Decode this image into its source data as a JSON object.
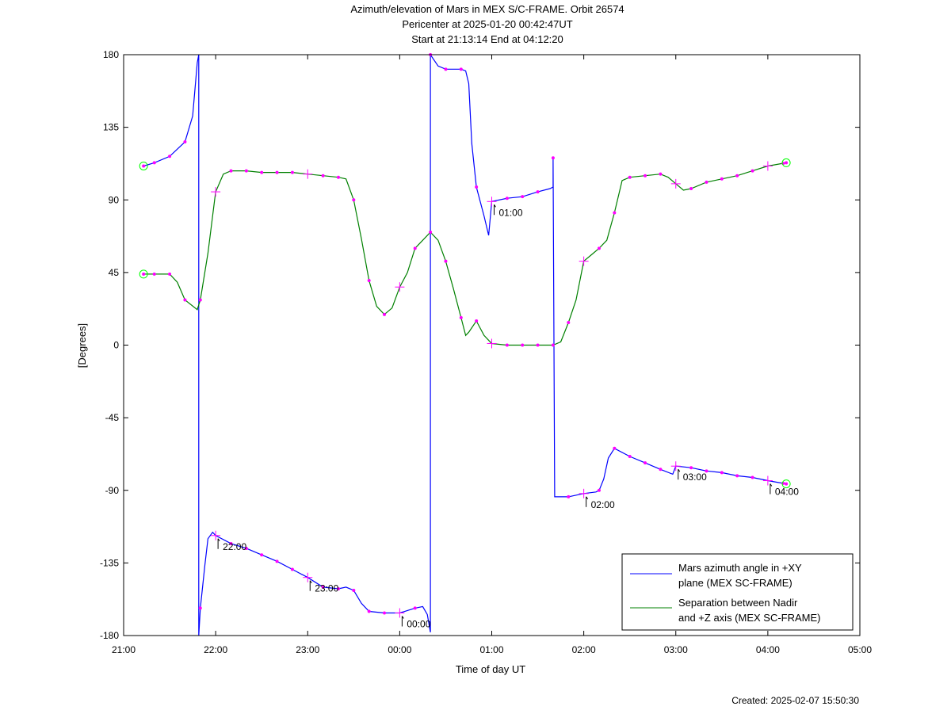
{
  "title": {
    "line1": "Azimuth/elevation of Mars in MEX S/C-FRAME.  Orbit 26574",
    "line2": "Pericenter at 2025-01-20 00:42:47UT",
    "line3": "Start at 21:13:14 End at 04:12:20"
  },
  "created": "Created: 2025-02-07 15:50:30",
  "colors": {
    "azimuth": "#0000ff",
    "separation": "#008000",
    "markers": "#ff00ff",
    "endpoint_circle": "#00ff00"
  },
  "chart_data": {
    "type": "line",
    "xlabel": "Time of day UT",
    "ylabel": "[Degrees]",
    "ylim": [
      -180,
      180
    ],
    "xlim_hours": [
      21,
      29
    ],
    "x_ticks": [
      "21:00",
      "22:00",
      "23:00",
      "00:00",
      "01:00",
      "02:00",
      "03:00",
      "04:00",
      "05:00"
    ],
    "y_ticks": [
      "180",
      "135",
      "90",
      "45",
      "0",
      "-45",
      "-90",
      "-135",
      "-180"
    ],
    "hour_annotations": [
      {
        "label": "22:00",
        "series": "azimuth"
      },
      {
        "label": "23:00",
        "series": "azimuth"
      },
      {
        "label": "00:00",
        "series": "azimuth"
      },
      {
        "label": "01:00",
        "series": "azimuth"
      },
      {
        "label": "02:00",
        "series": "azimuth"
      },
      {
        "label": "03:00",
        "series": "azimuth"
      },
      {
        "label": "04:00",
        "series": "azimuth"
      }
    ],
    "legend_position": "bottom-right",
    "series": [
      {
        "name": "Mars azimuth angle in +XY plane (MEX SC-FRAME)",
        "legend_lines": [
          "Mars azimuth angle in +XY",
          "plane (MEX SC-FRAME)"
        ],
        "points": [
          [
            "21:13",
            111
          ],
          [
            "21:20",
            113
          ],
          [
            "21:30",
            117
          ],
          [
            "21:40",
            126
          ],
          [
            "21:45",
            142
          ],
          [
            "21:48",
            175
          ],
          [
            "21:49",
            180
          ],
          [
            "21:49",
            -180
          ],
          [
            "21:50",
            -163
          ],
          [
            "21:53",
            -136
          ],
          [
            "21:55",
            -120
          ],
          [
            "21:58",
            -116
          ],
          [
            "22:00",
            -118
          ],
          [
            "22:10",
            -123
          ],
          [
            "22:20",
            -126
          ],
          [
            "22:30",
            -130
          ],
          [
            "22:40",
            -134
          ],
          [
            "22:50",
            -139
          ],
          [
            "23:00",
            -144
          ],
          [
            "23:10",
            -150
          ],
          [
            "23:20",
            -151
          ],
          [
            "23:25",
            -150
          ],
          [
            "23:30",
            -152
          ],
          [
            "23:35",
            -160
          ],
          [
            "23:40",
            -165
          ],
          [
            "23:50",
            -166
          ],
          [
            "24:00",
            -166
          ],
          [
            "24:10",
            -163
          ],
          [
            "24:15",
            -162
          ],
          [
            "24:18",
            -167
          ],
          [
            "24:20",
            -178
          ],
          [
            "24:20",
            180
          ],
          [
            "24:25",
            173
          ],
          [
            "24:30",
            171
          ],
          [
            "24:40",
            171
          ],
          [
            "24:43",
            170
          ],
          [
            "24:45",
            162
          ],
          [
            "24:47",
            125
          ],
          [
            "24:50",
            98
          ],
          [
            "24:55",
            80
          ],
          [
            "24:58",
            68
          ],
          [
            "25:00",
            89
          ],
          [
            "25:10",
            91
          ],
          [
            "25:20",
            92
          ],
          [
            "25:30",
            95
          ],
          [
            "25:38",
            97
          ],
          [
            "25:40",
            98
          ],
          [
            "25:40",
            116
          ],
          [
            "25:41",
            -94
          ],
          [
            "25:50",
            -94
          ],
          [
            "26:00",
            -92
          ],
          [
            "26:08",
            -91
          ],
          [
            "26:10",
            -90
          ],
          [
            "26:13",
            -83
          ],
          [
            "26:16",
            -70
          ],
          [
            "26:20",
            -64
          ],
          [
            "26:30",
            -69
          ],
          [
            "26:40",
            -73
          ],
          [
            "26:50",
            -77
          ],
          [
            "26:58",
            -80
          ],
          [
            "27:00",
            -75
          ],
          [
            "27:10",
            -76
          ],
          [
            "27:20",
            -78
          ],
          [
            "27:30",
            -79
          ],
          [
            "27:40",
            -81
          ],
          [
            "27:50",
            -82
          ],
          [
            "28:00",
            -84
          ],
          [
            "28:12",
            -86
          ]
        ]
      },
      {
        "name": "Separation between Nadir and +Z axis (MEX SC-FRAME)",
        "legend_lines": [
          "Separation between Nadir",
          "and +Z axis (MEX SC-FRAME)"
        ],
        "points": [
          [
            "21:13",
            44
          ],
          [
            "21:20",
            44
          ],
          [
            "21:30",
            44
          ],
          [
            "21:35",
            39
          ],
          [
            "21:40",
            28
          ],
          [
            "21:48",
            22
          ],
          [
            "21:50",
            28
          ],
          [
            "21:55",
            57
          ],
          [
            "22:00",
            95
          ],
          [
            "22:05",
            106
          ],
          [
            "22:10",
            108
          ],
          [
            "22:20",
            108
          ],
          [
            "22:30",
            107
          ],
          [
            "22:40",
            107
          ],
          [
            "22:50",
            107
          ],
          [
            "23:00",
            106
          ],
          [
            "23:10",
            105
          ],
          [
            "23:20",
            104
          ],
          [
            "23:25",
            103
          ],
          [
            "23:30",
            90
          ],
          [
            "23:35",
            66
          ],
          [
            "23:40",
            40
          ],
          [
            "23:45",
            24
          ],
          [
            "23:50",
            19
          ],
          [
            "23:55",
            23
          ],
          [
            "24:00",
            36
          ],
          [
            "24:05",
            45
          ],
          [
            "24:10",
            60
          ],
          [
            "24:15",
            65
          ],
          [
            "24:20",
            70
          ],
          [
            "24:25",
            65
          ],
          [
            "24:30",
            52
          ],
          [
            "24:35",
            35
          ],
          [
            "24:40",
            17
          ],
          [
            "24:43",
            6
          ],
          [
            "24:45",
            8
          ],
          [
            "24:50",
            15
          ],
          [
            "24:55",
            6
          ],
          [
            "25:00",
            1
          ],
          [
            "25:10",
            0
          ],
          [
            "25:20",
            0
          ],
          [
            "25:30",
            0
          ],
          [
            "25:40",
            0
          ],
          [
            "25:45",
            2
          ],
          [
            "25:50",
            14
          ],
          [
            "25:55",
            28
          ],
          [
            "26:00",
            52
          ],
          [
            "26:05",
            56
          ],
          [
            "26:10",
            60
          ],
          [
            "26:15",
            65
          ],
          [
            "26:20",
            82
          ],
          [
            "26:25",
            102
          ],
          [
            "26:30",
            104
          ],
          [
            "26:40",
            105
          ],
          [
            "26:50",
            106
          ],
          [
            "26:55",
            104
          ],
          [
            "27:00",
            100
          ],
          [
            "27:05",
            96
          ],
          [
            "27:10",
            97
          ],
          [
            "27:20",
            101
          ],
          [
            "27:30",
            103
          ],
          [
            "27:40",
            105
          ],
          [
            "27:50",
            108
          ],
          [
            "28:00",
            111
          ],
          [
            "28:12",
            113
          ]
        ]
      }
    ]
  }
}
